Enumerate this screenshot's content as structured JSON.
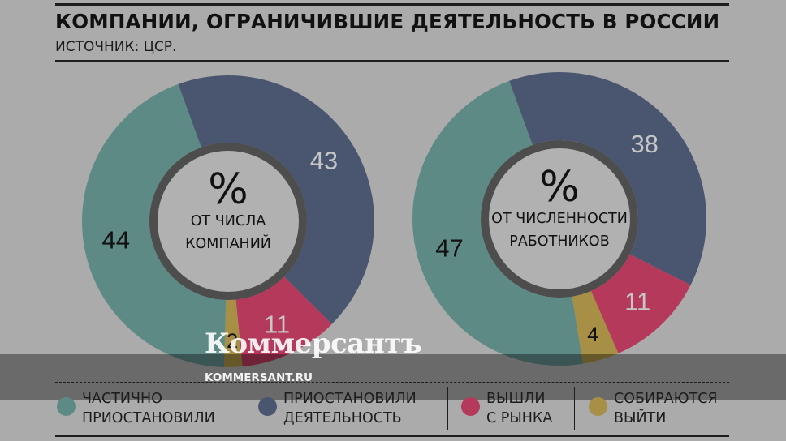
{
  "title": "КОМПАНИИ, ОГРАНИЧИВШИЕ ДЕЯТЕЛЬНОСТЬ В РОССИИ",
  "source": "ИСТОЧНИК: ЦСР.",
  "watermark": {
    "logo": "Коммерсантъ",
    "url": "KOMMERSANT.RU"
  },
  "colors": {
    "partially_suspended": "#5e8a86",
    "suspended": "#4a5670",
    "exited": "#b5395b",
    "planning_to_exit": "#a78f45",
    "ring": "#4d4d4d",
    "center": "#b1b1b1"
  },
  "legend": [
    {
      "key": "partially_suspended",
      "line1": "ЧАСТИЧНО",
      "line2": "ПРИОСТАНОВИЛИ"
    },
    {
      "key": "suspended",
      "line1": "ПРИОСТАНОВИЛИ",
      "line2": "ДЕЯТЕЛЬНОСТЬ"
    },
    {
      "key": "exited",
      "line1": "ВЫШЛИ",
      "line2": "С РЫНКА"
    },
    {
      "key": "planning_to_exit",
      "line1": "СОБИРАЮТСЯ",
      "line2": "ВЫЙТИ"
    }
  ],
  "chart_data": [
    {
      "type": "pie",
      "center_symbol": "%",
      "center_line1": "ОТ ЧИСЛА",
      "center_line2": "КОМПАНИЙ",
      "categories": [
        "ЧАСТИЧНО ПРИОСТАНОВИЛИ",
        "ПРИОСТАНОВИЛИ ДЕЯТЕЛЬНОСТЬ",
        "ВЫШЛИ С РЫНКА",
        "СОБИРАЮТСЯ ВЫЙТИ"
      ],
      "values": [
        44,
        43,
        11,
        2
      ],
      "labels": [
        "44",
        "43",
        "11",
        "2"
      ]
    },
    {
      "type": "pie",
      "center_symbol": "%",
      "center_line1": "ОТ ЧИСЛЕННОСТИ",
      "center_line2": "РАБОТНИКОВ",
      "categories": [
        "ЧАСТИЧНО ПРИОСТАНОВИЛИ",
        "ПРИОСТАНОВИЛИ ДЕЯТЕЛЬНОСТЬ",
        "ВЫШЛИ С РЫНКА",
        "СОБИРАЮТСЯ ВЫЙТИ"
      ],
      "values": [
        47,
        38,
        11,
        4
      ],
      "labels": [
        "47",
        "38",
        "11",
        "4"
      ]
    }
  ]
}
